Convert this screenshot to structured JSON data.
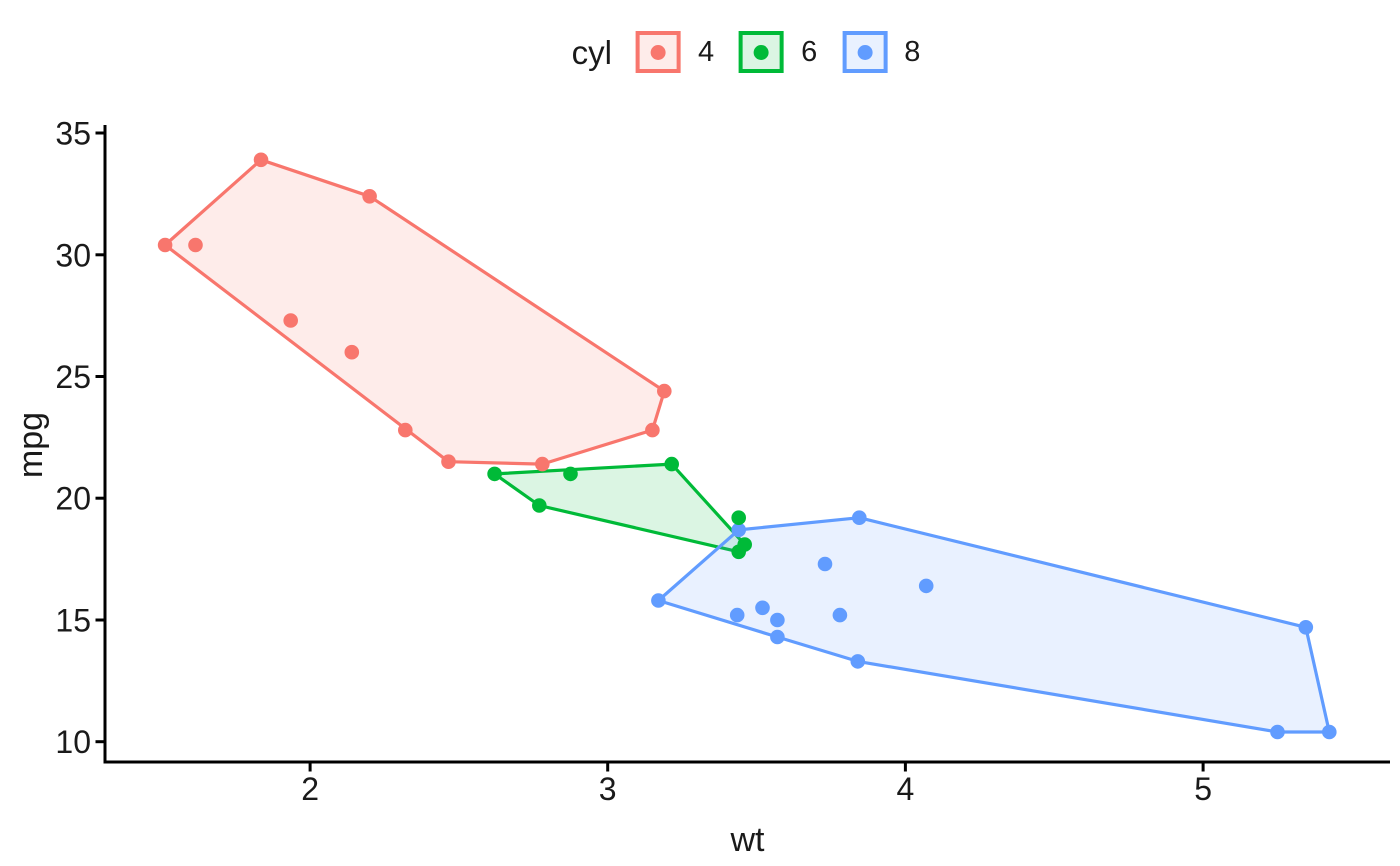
{
  "legend": {
    "title": "cyl",
    "entries": [
      {
        "label": "4",
        "color": "#F8766D"
      },
      {
        "label": "6",
        "color": "#00BA38"
      },
      {
        "label": "8",
        "color": "#619CFF"
      }
    ]
  },
  "colors": {
    "background": "#ffffff",
    "axis_line": "#000000",
    "text": "#1a1a1a"
  },
  "chart_data": {
    "type": "scatter",
    "title": "",
    "xlabel": "wt",
    "ylabel": "mpg",
    "x_ticks": [
      2,
      3,
      4,
      5
    ],
    "y_ticks": [
      10,
      15,
      20,
      25,
      30,
      35
    ],
    "xlim": [
      1.311,
      5.628
    ],
    "ylim": [
      9.166,
      35.33
    ],
    "grid": false,
    "legend_position": "top",
    "fill_alpha": 0.14,
    "series": [
      {
        "name": "4",
        "color": "#F8766D",
        "points": [
          [
            2.32,
            22.8
          ],
          [
            3.19,
            24.4
          ],
          [
            3.15,
            22.8
          ],
          [
            2.2,
            32.4
          ],
          [
            1.615,
            30.4
          ],
          [
            1.835,
            33.9
          ],
          [
            2.465,
            21.5
          ],
          [
            1.935,
            27.3
          ],
          [
            2.14,
            26.0
          ],
          [
            1.513,
            30.4
          ],
          [
            2.78,
            21.4
          ]
        ],
        "hull": [
          [
            1.513,
            30.4
          ],
          [
            1.835,
            33.9
          ],
          [
            2.2,
            32.4
          ],
          [
            3.19,
            24.4
          ],
          [
            3.15,
            22.8
          ],
          [
            2.78,
            21.4
          ],
          [
            2.465,
            21.5
          ]
        ]
      },
      {
        "name": "6",
        "color": "#00BA38",
        "points": [
          [
            2.62,
            21.0
          ],
          [
            2.875,
            21.0
          ],
          [
            3.215,
            21.4
          ],
          [
            3.44,
            19.2
          ],
          [
            3.46,
            18.1
          ],
          [
            3.44,
            17.8
          ],
          [
            2.77,
            19.7
          ]
        ],
        "hull": [
          [
            2.62,
            21.0
          ],
          [
            3.215,
            21.4
          ],
          [
            3.46,
            18.1
          ],
          [
            3.44,
            17.8
          ],
          [
            2.77,
            19.7
          ]
        ]
      },
      {
        "name": "8",
        "color": "#619CFF",
        "points": [
          [
            3.44,
            18.7
          ],
          [
            3.57,
            14.3
          ],
          [
            4.07,
            16.4
          ],
          [
            3.73,
            17.3
          ],
          [
            3.78,
            15.2
          ],
          [
            5.25,
            10.4
          ],
          [
            5.424,
            10.4
          ],
          [
            5.345,
            14.7
          ],
          [
            3.52,
            15.5
          ],
          [
            3.435,
            15.2
          ],
          [
            3.84,
            13.3
          ],
          [
            3.845,
            19.2
          ],
          [
            3.57,
            15.0
          ],
          [
            3.17,
            15.8
          ]
        ],
        "hull": [
          [
            3.17,
            15.8
          ],
          [
            3.44,
            18.7
          ],
          [
            3.845,
            19.2
          ],
          [
            5.345,
            14.7
          ],
          [
            5.424,
            10.4
          ],
          [
            5.25,
            10.4
          ],
          [
            3.84,
            13.3
          ],
          [
            3.57,
            14.3
          ]
        ]
      }
    ]
  }
}
